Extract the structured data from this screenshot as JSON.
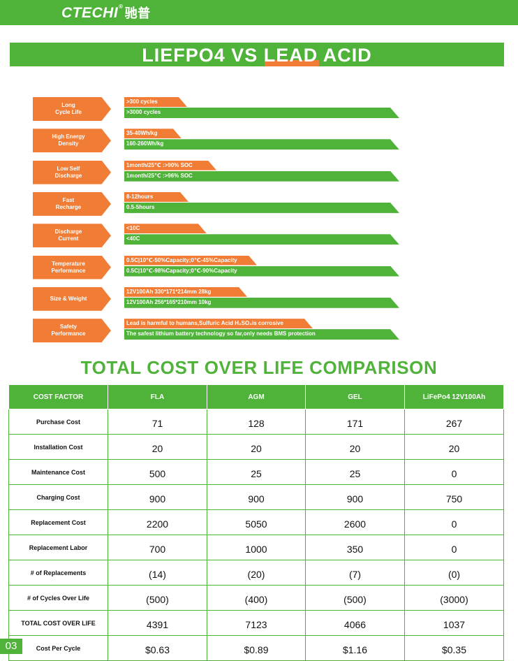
{
  "brand": {
    "logo_latin": "CTECHI",
    "logo_cn": "驰普",
    "registered": "®"
  },
  "comparison": {
    "title": "LIEFPO4 VS LEAD ACID",
    "features": [
      {
        "label": "Long\nCycle Life",
        "lead": ">300 cycles",
        "lifepo4": ">3000 cycles"
      },
      {
        "label": "High Energy\nDensity",
        "lead": "35-40Wh/kg",
        "lifepo4": "160-260Wh/kg"
      },
      {
        "label": "Low Self\nDischarge",
        "lead": "1month/25℃ :>90%  SOC",
        "lifepo4": "1month/25℃ :>96%  SOC"
      },
      {
        "label": "Fast\nRecharge",
        "lead": "8-12hours",
        "lifepo4": "0.5-5hours"
      },
      {
        "label": "Discharge\nCurrent",
        "lead": "<10C",
        "lifepo4": "<40C"
      },
      {
        "label": "Temperature\nPerformance",
        "lead": "0.5C|10℃-50%Capacity;0℃-45%Capacity",
        "lifepo4": "0.5C|10℃-98%Capacity;0℃-90%Capacity"
      },
      {
        "label": "Size & Weight",
        "lead": "12V100Ah 330*171*214mm 28kg",
        "lifepo4": "12V100Ah 256*165*210mm 10kg"
      },
      {
        "label": "Safety\nPerformance",
        "lead": "Lead is harmful to humans,Sulfuric Acid H₂SO₄is corrosive",
        "lifepo4": "The safest lithium battery technology so far,only needs BMS protection"
      }
    ]
  },
  "cost": {
    "title": "TOTAL COST OVER LIFE COMPARISON",
    "headers": [
      "COST FACTOR",
      "FLA",
      "AGM",
      "GEL",
      "LiFePo4 12V100Ah"
    ],
    "rows": [
      [
        "Purchase Cost",
        "71",
        "128",
        "171",
        "267"
      ],
      [
        "Installation Cost",
        "20",
        "20",
        "20",
        "20"
      ],
      [
        "Maintenance Cost",
        "500",
        "25",
        "25",
        "0"
      ],
      [
        "Charging Cost",
        "900",
        "900",
        "900",
        "750"
      ],
      [
        "Replacement Cost",
        "2200",
        "5050",
        "2600",
        "0"
      ],
      [
        "Replacement Labor",
        "700",
        "1000",
        "350",
        "0"
      ],
      [
        "# of Replacements",
        "(14)",
        "(20)",
        "(7)",
        "(0)"
      ],
      [
        "# of Cycles Over Life",
        "(500)",
        "(400)",
        "(500)",
        "(3000)"
      ],
      [
        "TOTAL COST OVER LIFE",
        "4391",
        "7123",
        "4066",
        "1037"
      ],
      [
        "Cost Per Cycle",
        "$0.63",
        "$0.89",
        "$1.16",
        "$0.35"
      ]
    ]
  },
  "page_number": "03",
  "colors": {
    "green": "#4fb33a",
    "orange": "#f07c35"
  }
}
